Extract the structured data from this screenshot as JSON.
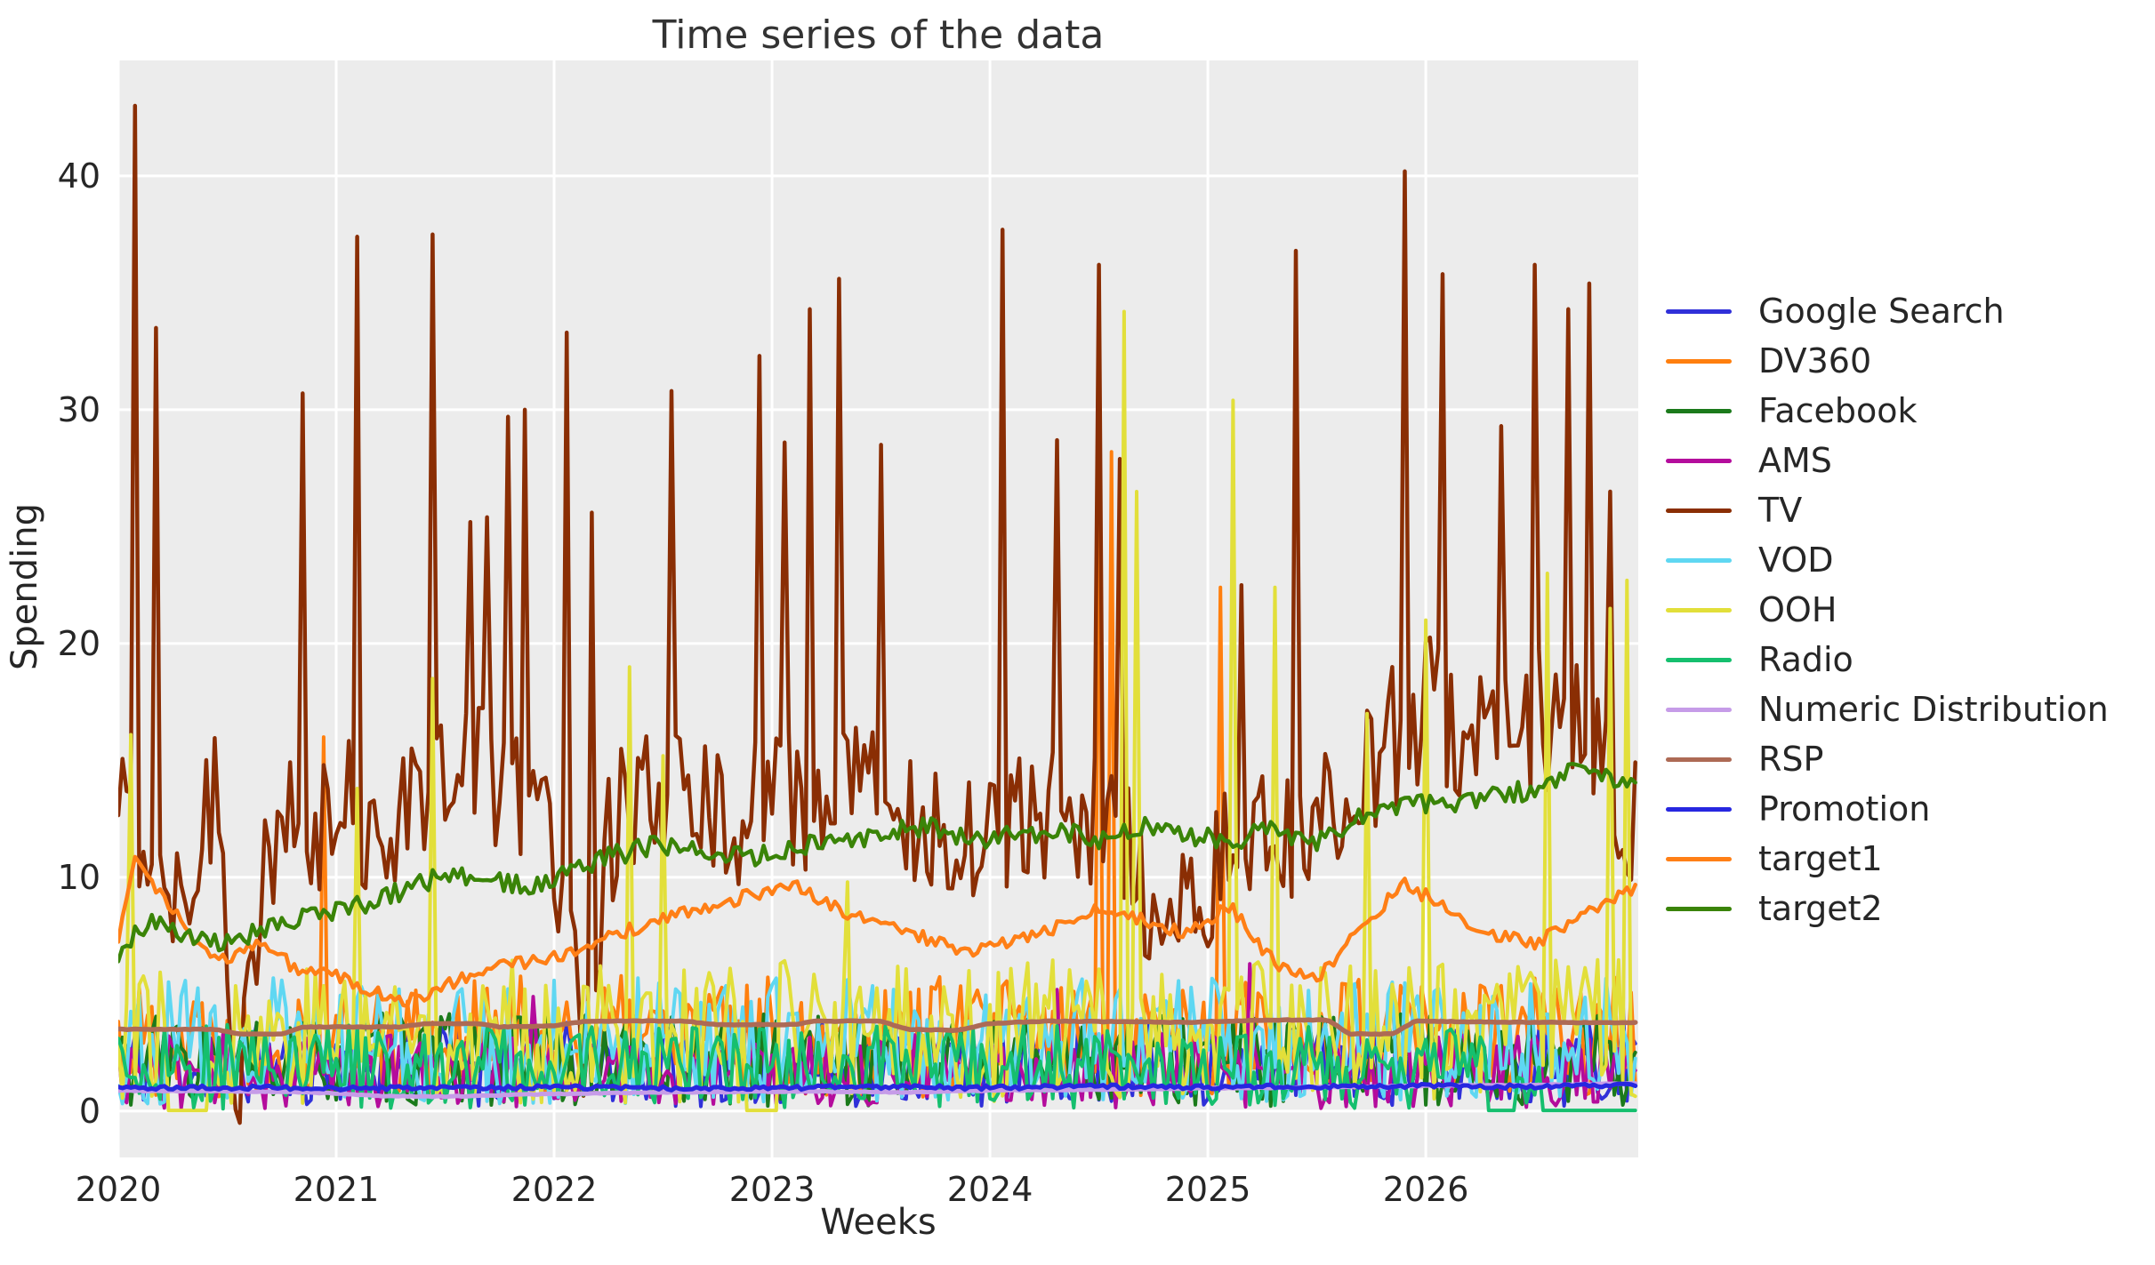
{
  "chart_data": {
    "type": "line",
    "title": "Time series of the data",
    "xlabel": "Weeks",
    "ylabel": "Spending",
    "x_unit": "years, weekly sampling",
    "xlim": [
      2020.0,
      2026.975
    ],
    "ylim": [
      -1.98,
      44.94
    ],
    "xticks": [
      2020,
      2021,
      2022,
      2023,
      2024,
      2025,
      2026
    ],
    "yticks": [
      0,
      10,
      20,
      30,
      40
    ],
    "grid": true,
    "grid_color": "#ffffff",
    "plot_background": "#ececec",
    "legend_position": "right",
    "points_per_year": 52,
    "series": [
      {
        "name": "Google Search",
        "color": "#3030d9",
        "style": "noisy",
        "lw": 4,
        "seed": 11,
        "base": 2.0,
        "amp": 1.8,
        "min": 0.2,
        "spikes": [
          [
            2026.9,
            4.8
          ]
        ]
      },
      {
        "name": "DV360",
        "color": "#ff7f0e",
        "style": "noisy",
        "lw": 4,
        "seed": 22,
        "base": 3.2,
        "amp": 2.6,
        "min": 0.3,
        "spikes": [
          [
            2020.95,
            16.0
          ],
          [
            2024.5,
            26.6
          ],
          [
            2024.56,
            28.2
          ],
          [
            2025.05,
            22.4
          ]
        ]
      },
      {
        "name": "Facebook",
        "color": "#1b7a1b",
        "style": "noisy",
        "lw": 4,
        "seed": 33,
        "base": 2.2,
        "amp": 2.0,
        "min": 0.1
      },
      {
        "name": "AMS",
        "color": "#b40c9c",
        "style": "noisy",
        "lw": 4,
        "seed": 44,
        "base": 1.7,
        "amp": 1.6,
        "min": 0.1,
        "spikes": [
          [
            2021.9,
            4.9
          ],
          [
            2024.3,
            5.2
          ],
          [
            2025.2,
            6.3
          ]
        ]
      },
      {
        "name": "TV",
        "color": "#8a2e04",
        "style": "hybrid",
        "lw": 4.5,
        "seed": 55,
        "amp": 3.2,
        "min": -0.5,
        "keypoints": [
          [
            2020.0,
            13
          ],
          [
            2020.15,
            10.5
          ],
          [
            2020.3,
            10
          ],
          [
            2020.45,
            14
          ],
          [
            2020.55,
            0.5
          ],
          [
            2020.62,
            8
          ],
          [
            2020.75,
            12
          ],
          [
            2020.9,
            11
          ],
          [
            2021.0,
            13
          ],
          [
            2021.2,
            12
          ],
          [
            2021.4,
            14
          ],
          [
            2021.6,
            15
          ],
          [
            2021.8,
            14
          ],
          [
            2022.0,
            12
          ],
          [
            2022.13,
            3
          ],
          [
            2022.25,
            12
          ],
          [
            2022.4,
            13
          ],
          [
            2022.6,
            13
          ],
          [
            2022.8,
            12.5
          ],
          [
            2023.0,
            13.5
          ],
          [
            2023.2,
            13
          ],
          [
            2023.4,
            13.5
          ],
          [
            2023.6,
            13
          ],
          [
            2023.8,
            12
          ],
          [
            2024.0,
            12.5
          ],
          [
            2024.2,
            12
          ],
          [
            2024.4,
            13
          ],
          [
            2024.6,
            12
          ],
          [
            2024.8,
            6.5
          ],
          [
            2025.0,
            10
          ],
          [
            2025.2,
            11
          ],
          [
            2025.4,
            12
          ],
          [
            2025.6,
            12.5
          ],
          [
            2025.8,
            15.5
          ],
          [
            2026.0,
            17.5
          ],
          [
            2026.2,
            16
          ],
          [
            2026.4,
            16.5
          ],
          [
            2026.6,
            17
          ],
          [
            2026.8,
            16
          ],
          [
            2026.97,
            12
          ]
        ],
        "spikes": [
          [
            2020.08,
            43.0
          ],
          [
            2020.17,
            33.5
          ],
          [
            2020.85,
            30.7
          ],
          [
            2021.1,
            37.4
          ],
          [
            2021.45,
            37.5
          ],
          [
            2021.62,
            25.2
          ],
          [
            2021.7,
            25.4
          ],
          [
            2021.78,
            29.7
          ],
          [
            2021.86,
            30.0
          ],
          [
            2022.05,
            33.3
          ],
          [
            2022.17,
            25.6
          ],
          [
            2022.53,
            30.8
          ],
          [
            2022.95,
            32.3
          ],
          [
            2023.05,
            28.6
          ],
          [
            2023.17,
            34.3
          ],
          [
            2023.3,
            35.6
          ],
          [
            2023.5,
            28.5
          ],
          [
            2024.05,
            37.7
          ],
          [
            2024.3,
            28.7
          ],
          [
            2024.5,
            36.2
          ],
          [
            2024.6,
            27.9
          ],
          [
            2025.15,
            22.5
          ],
          [
            2025.4,
            36.8
          ],
          [
            2025.9,
            40.2
          ],
          [
            2026.08,
            35.8
          ],
          [
            2026.35,
            29.3
          ],
          [
            2026.5,
            36.2
          ],
          [
            2026.65,
            34.3
          ],
          [
            2026.75,
            35.4
          ],
          [
            2026.85,
            26.5
          ]
        ]
      },
      {
        "name": "VOD",
        "color": "#5fd7f2",
        "style": "noisy",
        "lw": 4,
        "seed": 66,
        "base": 3.0,
        "amp": 2.7,
        "min": 0.2
      },
      {
        "name": "OOH",
        "color": "#e2df3a",
        "style": "noisy",
        "lw": 4,
        "seed": 77,
        "base": 3.4,
        "amp": 3.1,
        "min": 0.0,
        "spikes": [
          [
            2020.05,
            16.1
          ],
          [
            2020.3,
            18.4
          ],
          [
            2021.1,
            13.8
          ],
          [
            2021.45,
            18.5
          ],
          [
            2022.35,
            19.0
          ],
          [
            2022.5,
            15.2
          ],
          [
            2023.35,
            9.8
          ],
          [
            2024.62,
            34.2
          ],
          [
            2024.68,
            26.5
          ],
          [
            2025.12,
            30.4
          ],
          [
            2025.3,
            22.4
          ],
          [
            2025.73,
            17.0
          ],
          [
            2026.0,
            21.0
          ],
          [
            2026.55,
            23.0
          ],
          [
            2026.85,
            21.5
          ],
          [
            2026.93,
            22.7
          ]
        ],
        "zero_segments": [
          [
            2020.23,
            2020.42
          ],
          [
            2022.88,
            2023.02
          ]
        ]
      },
      {
        "name": "Radio",
        "color": "#15bf6e",
        "style": "noisy",
        "lw": 4,
        "seed": 88,
        "base": 1.9,
        "amp": 1.8,
        "min": 0.05,
        "zero_segments": [
          [
            2026.28,
            2026.42
          ],
          [
            2026.52,
            2026.97
          ]
        ]
      },
      {
        "name": "Numeric Distribution",
        "color": "#c69ce8",
        "style": "smooth",
        "lw": 5,
        "seed": 99,
        "jitter": 0.02,
        "keypoints": [
          [
            2020.0,
            0.88
          ],
          [
            2020.5,
            0.85
          ],
          [
            2020.9,
            0.8
          ],
          [
            2021.2,
            0.65
          ],
          [
            2021.5,
            0.62
          ],
          [
            2021.9,
            0.72
          ],
          [
            2022.3,
            0.78
          ],
          [
            2022.8,
            0.82
          ],
          [
            2023.2,
            0.85
          ],
          [
            2023.6,
            0.8
          ],
          [
            2024.0,
            0.88
          ],
          [
            2024.5,
            0.92
          ],
          [
            2025.0,
            0.98
          ],
          [
            2025.5,
            1.02
          ],
          [
            2026.0,
            1.08
          ],
          [
            2026.5,
            1.12
          ],
          [
            2026.97,
            1.18
          ]
        ]
      },
      {
        "name": "RSP",
        "color": "#ad6a55",
        "style": "smooth",
        "lw": 5.5,
        "seed": 111,
        "jitter": 0.015,
        "keypoints": [
          [
            2020.0,
            3.5
          ],
          [
            2020.45,
            3.5
          ],
          [
            2020.55,
            3.3
          ],
          [
            2020.75,
            3.3
          ],
          [
            2020.85,
            3.6
          ],
          [
            2021.3,
            3.6
          ],
          [
            2021.4,
            3.75
          ],
          [
            2021.65,
            3.75
          ],
          [
            2021.75,
            3.6
          ],
          [
            2022.0,
            3.65
          ],
          [
            2022.15,
            3.85
          ],
          [
            2022.6,
            3.85
          ],
          [
            2022.75,
            3.7
          ],
          [
            2023.1,
            3.7
          ],
          [
            2023.2,
            3.85
          ],
          [
            2023.5,
            3.85
          ],
          [
            2023.62,
            3.5
          ],
          [
            2023.85,
            3.45
          ],
          [
            2024.0,
            3.75
          ],
          [
            2024.25,
            3.85
          ],
          [
            2024.9,
            3.8
          ],
          [
            2025.3,
            3.9
          ],
          [
            2025.55,
            3.9
          ],
          [
            2025.65,
            3.3
          ],
          [
            2025.85,
            3.3
          ],
          [
            2025.95,
            3.85
          ],
          [
            2026.4,
            3.8
          ],
          [
            2026.97,
            3.78
          ]
        ]
      },
      {
        "name": "Promotion",
        "color": "#2727e0",
        "style": "smooth",
        "lw": 5,
        "seed": 122,
        "jitter": 0.09,
        "keypoints": [
          [
            2020.0,
            1.0
          ],
          [
            2020.5,
            1.02
          ],
          [
            2021.0,
            0.96
          ],
          [
            2021.5,
            1.0
          ],
          [
            2022.0,
            1.02
          ],
          [
            2022.5,
            0.98
          ],
          [
            2023.0,
            1.0
          ],
          [
            2023.5,
            1.04
          ],
          [
            2024.0,
            1.0
          ],
          [
            2024.5,
            1.06
          ],
          [
            2025.0,
            1.02
          ],
          [
            2025.5,
            1.05
          ],
          [
            2026.0,
            1.08
          ],
          [
            2026.5,
            1.05
          ],
          [
            2026.97,
            1.1
          ]
        ]
      },
      {
        "name": "target1",
        "color": "#ff7f16",
        "style": "smooth",
        "lw": 4.5,
        "seed": 133,
        "jitter": 0.3,
        "keypoints": [
          [
            2020.0,
            7.2
          ],
          [
            2020.08,
            10.8
          ],
          [
            2020.2,
            9.3
          ],
          [
            2020.35,
            7.2
          ],
          [
            2020.5,
            6.3
          ],
          [
            2020.65,
            7.4
          ],
          [
            2020.8,
            6.2
          ],
          [
            2021.0,
            5.8
          ],
          [
            2021.15,
            5.2
          ],
          [
            2021.3,
            4.6
          ],
          [
            2021.5,
            5.4
          ],
          [
            2021.7,
            6.2
          ],
          [
            2021.9,
            6.4
          ],
          [
            2022.1,
            6.8
          ],
          [
            2022.3,
            7.6
          ],
          [
            2022.5,
            8.2
          ],
          [
            2022.7,
            8.8
          ],
          [
            2022.9,
            9.2
          ],
          [
            2023.1,
            9.8
          ],
          [
            2023.3,
            8.6
          ],
          [
            2023.5,
            8.2
          ],
          [
            2023.7,
            7.4
          ],
          [
            2023.9,
            6.8
          ],
          [
            2024.1,
            7.2
          ],
          [
            2024.3,
            7.8
          ],
          [
            2024.5,
            8.8
          ],
          [
            2024.7,
            8.2
          ],
          [
            2024.9,
            7.6
          ],
          [
            2025.1,
            8.8
          ],
          [
            2025.3,
            6.4
          ],
          [
            2025.5,
            5.6
          ],
          [
            2025.7,
            7.8
          ],
          [
            2025.9,
            9.8
          ],
          [
            2026.1,
            8.6
          ],
          [
            2026.3,
            7.6
          ],
          [
            2026.5,
            7.2
          ],
          [
            2026.7,
            8.2
          ],
          [
            2026.97,
            9.6
          ]
        ]
      },
      {
        "name": "target2",
        "color": "#3a8408",
        "style": "smooth",
        "lw": 4.5,
        "seed": 144,
        "jitter": 0.45,
        "keypoints": [
          [
            2020.0,
            6.8
          ],
          [
            2020.15,
            8.2
          ],
          [
            2020.3,
            7.6
          ],
          [
            2020.5,
            7.2
          ],
          [
            2020.7,
            7.8
          ],
          [
            2020.9,
            8.4
          ],
          [
            2021.1,
            8.8
          ],
          [
            2021.3,
            9.4
          ],
          [
            2021.5,
            10.2
          ],
          [
            2021.7,
            10.0
          ],
          [
            2021.9,
            9.6
          ],
          [
            2022.1,
            10.4
          ],
          [
            2022.3,
            11.0
          ],
          [
            2022.5,
            11.4
          ],
          [
            2022.7,
            11.2
          ],
          [
            2022.9,
            10.8
          ],
          [
            2023.1,
            11.2
          ],
          [
            2023.3,
            11.6
          ],
          [
            2023.5,
            11.8
          ],
          [
            2023.7,
            12.2
          ],
          [
            2023.9,
            11.6
          ],
          [
            2024.1,
            11.8
          ],
          [
            2024.3,
            12.0
          ],
          [
            2024.5,
            11.6
          ],
          [
            2024.7,
            12.2
          ],
          [
            2024.9,
            11.8
          ],
          [
            2025.1,
            11.6
          ],
          [
            2025.3,
            12.0
          ],
          [
            2025.5,
            11.4
          ],
          [
            2025.7,
            12.6
          ],
          [
            2025.9,
            13.2
          ],
          [
            2026.1,
            13.0
          ],
          [
            2026.3,
            13.4
          ],
          [
            2026.5,
            13.8
          ],
          [
            2026.7,
            14.6
          ],
          [
            2026.97,
            14.0
          ]
        ]
      }
    ]
  }
}
